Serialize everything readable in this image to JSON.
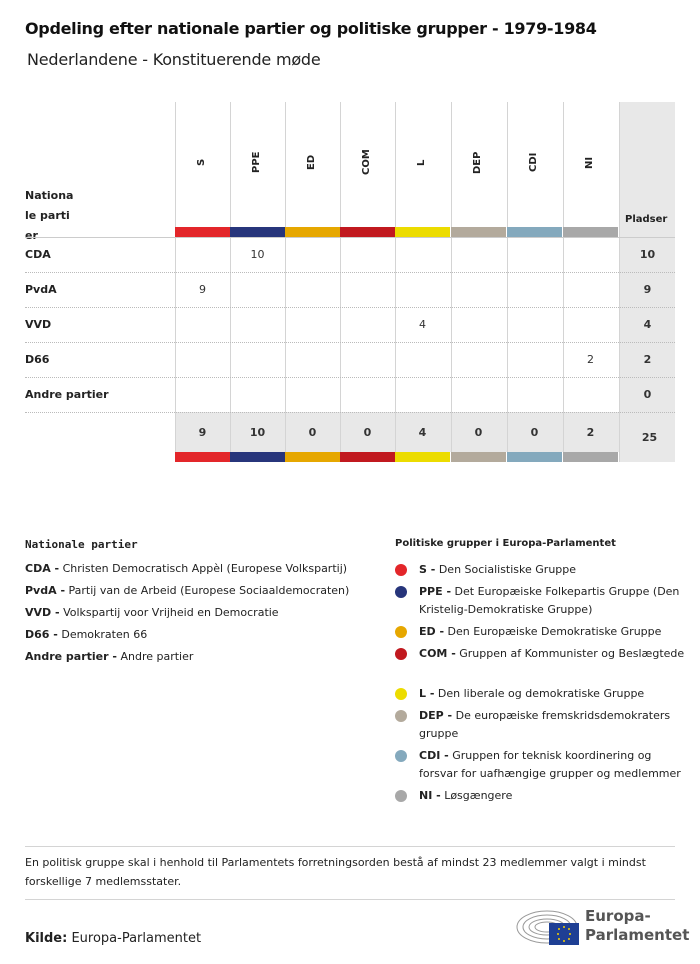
{
  "title": "Opdeling efter nationale partier og politiske grupper - 1979-1984",
  "subtitle": "Nederlandene - Konstituerende møde",
  "chart_data": {
    "type": "table",
    "row_header": "Nationale partier",
    "total_header": "Pladser",
    "groups": [
      {
        "code": "S",
        "color": "#e3262a"
      },
      {
        "code": "PPE",
        "color": "#27357b"
      },
      {
        "code": "ED",
        "color": "#e6a700"
      },
      {
        "code": "COM",
        "color": "#c1191f"
      },
      {
        "code": "L",
        "color": "#ecdc00"
      },
      {
        "code": "DEP",
        "color": "#b3aa9c"
      },
      {
        "code": "CDI",
        "color": "#84a9bd"
      },
      {
        "code": "NI",
        "color": "#a8a8a8"
      }
    ],
    "rows": [
      {
        "party": "CDA",
        "values": [
          null,
          10,
          null,
          null,
          null,
          null,
          null,
          null
        ],
        "total": 10
      },
      {
        "party": "PvdA",
        "values": [
          9,
          null,
          null,
          null,
          null,
          null,
          null,
          null
        ],
        "total": 9
      },
      {
        "party": "VVD",
        "values": [
          null,
          null,
          null,
          null,
          4,
          null,
          null,
          null
        ],
        "total": 4
      },
      {
        "party": "D66",
        "values": [
          null,
          null,
          null,
          null,
          null,
          null,
          null,
          2
        ],
        "total": 2
      },
      {
        "party": "Andre partier",
        "values": [
          null,
          null,
          null,
          null,
          null,
          null,
          null,
          null
        ],
        "total": 0
      }
    ],
    "column_totals": [
      9,
      10,
      0,
      0,
      4,
      0,
      0,
      2
    ],
    "grand_total": 25
  },
  "national_legend": {
    "title": "Nationale partier",
    "items": [
      {
        "code": "CDA -",
        "name": "Christen Democratisch Appèl (Europese Volkspartij)"
      },
      {
        "code": "PvdA -",
        "name": "Partij van de Arbeid (Europese Sociaaldemocraten)"
      },
      {
        "code": "VVD -",
        "name": "Volkspartij voor Vrijheid en Democratie"
      },
      {
        "code": "D66 -",
        "name": "Demokraten 66"
      },
      {
        "code": "Andre partier -",
        "name": "Andre partier"
      }
    ]
  },
  "group_legend": {
    "title": "Politiske grupper i Europa-Parlamentet",
    "items": [
      {
        "code": "S -",
        "name": "Den Socialistiske Gruppe"
      },
      {
        "code": "PPE -",
        "name": "Det Europæiske Folkepartis Gruppe (Den Kristelig-Demokratiske Gruppe)"
      },
      {
        "code": "ED -",
        "name": "Den Europæiske Demokratiske Gruppe"
      },
      {
        "code": "COM -",
        "name": "Gruppen af Kommunister og Beslægtede"
      },
      {
        "code": "L -",
        "name": "Den liberale og demokratiske Gruppe"
      },
      {
        "code": "DEP -",
        "name": "De europæiske fremskridsdemokraters gruppe"
      },
      {
        "code": "CDI -",
        "name": "Gruppen for teknisk koordinering og forsvar for uafhængige grupper og medlemmer"
      },
      {
        "code": "NI -",
        "name": "Løsgængere"
      }
    ]
  },
  "note": "En politisk gruppe skal i henhold til Parlamentets forretningsorden bestå af mindst 23 medlemmer valgt i mindst forskellige 7 medlemsstater.",
  "source": {
    "label": "Kilde:",
    "value": "Europa-Parlamentet"
  },
  "logo": {
    "line1": "Europa-",
    "line2": "Parlamentet"
  }
}
